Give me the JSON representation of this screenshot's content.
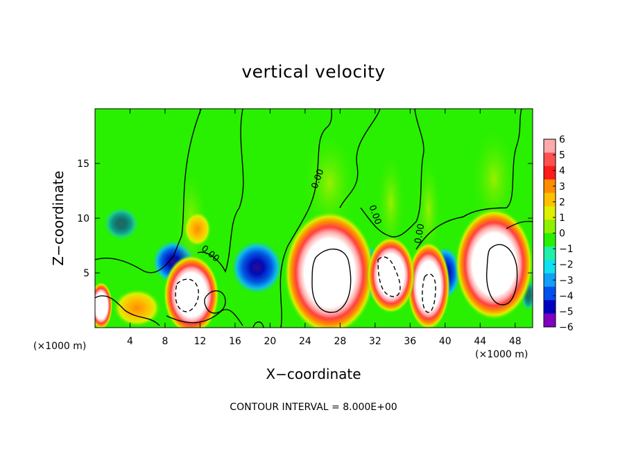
{
  "chart_data": {
    "type": "heatmap",
    "title": "vertical velocity",
    "xlabel": "X−coordinate",
    "ylabel": "Z−coordinate",
    "x_unit_left": "(×1000 m)",
    "x_unit_right": "(×1000 m)",
    "xlim": [
      0,
      50
    ],
    "ylim": [
      0,
      20
    ],
    "x_ticks": [
      4,
      8,
      12,
      16,
      20,
      24,
      28,
      32,
      36,
      40,
      44,
      48
    ],
    "y_ticks": [
      5,
      10,
      15
    ],
    "footer": "CONTOUR INTERVAL = 8.000E+00",
    "contour_label": "0.00",
    "colorbar": {
      "ticks": [
        6,
        5,
        4,
        3,
        2,
        1,
        0,
        -1,
        -2,
        -3,
        -4,
        -5,
        -6
      ],
      "tick_labels": [
        "6",
        "5",
        "4",
        "3",
        "2",
        "1",
        "0",
        "−1",
        "−2",
        "−3",
        "−4",
        "−5",
        "−6"
      ],
      "colors": [
        "#ffaaaa",
        "#ff5050",
        "#ff1a1a",
        "#ff8c00",
        "#ffc000",
        "#dcf000",
        "#90f000",
        "#28f000",
        "#20f0a8",
        "#10e0f0",
        "#10a0f8",
        "#0050f0",
        "#0000c0",
        "#8000c0"
      ]
    },
    "cells": [
      {
        "x": 11,
        "z": 3,
        "value": 12,
        "rx": 2.2,
        "rz": 2.7
      },
      {
        "x": 26.8,
        "z": 5,
        "value": 14,
        "rx": 3.6,
        "rz": 4.2
      },
      {
        "x": 45.6,
        "z": 5.8,
        "value": 14,
        "rx": 3.1,
        "rz": 3.8
      },
      {
        "x": 38.1,
        "z": 3.8,
        "value": 11,
        "rx": 1.7,
        "rz": 3.0
      },
      {
        "x": 33.8,
        "z": 4.8,
        "value": 10,
        "rx": 1.9,
        "rz": 2.6
      },
      {
        "x": 0.7,
        "z": 2.0,
        "value": 8,
        "rx": 0.9,
        "rz": 1.6
      },
      {
        "x": 4.8,
        "z": 1.8,
        "value": 4,
        "rx": 1.9,
        "rz": 1.3
      },
      {
        "x": 11.7,
        "z": 9.0,
        "value": 3,
        "rx": 1.1,
        "rz": 1.2
      }
    ],
    "downdrafts": [
      {
        "x": 9.0,
        "z": 6.0,
        "value": -5,
        "rx": 2.5,
        "rz": 2.0
      },
      {
        "x": 18.5,
        "z": 5.5,
        "value": -5,
        "rx": 3.0,
        "rz": 2.5
      },
      {
        "x": 31.5,
        "z": 5.0,
        "value": -5,
        "rx": 2.0,
        "rz": 2.5
      },
      {
        "x": 40.0,
        "z": 5.0,
        "value": -5,
        "rx": 1.8,
        "rz": 2.5
      },
      {
        "x": 3.0,
        "z": 9.5,
        "value": -3,
        "rx": 2.0,
        "rz": 1.5
      },
      {
        "x": 49.5,
        "z": 3.0,
        "value": -3,
        "rx": 0.8,
        "rz": 1.5
      }
    ]
  }
}
